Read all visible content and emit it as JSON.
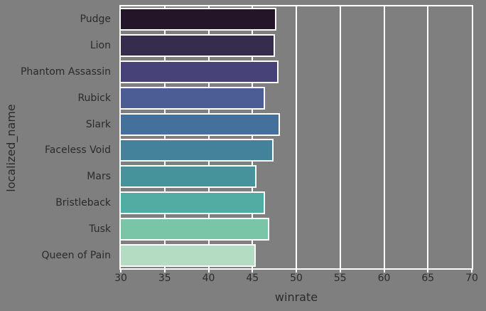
{
  "chart_data": {
    "type": "bar",
    "orientation": "horizontal",
    "title": "",
    "xlabel": "winrate",
    "ylabel": "localized_name",
    "categories": [
      "Pudge",
      "Lion",
      "Phantom Assassin",
      "Rubick",
      "Slark",
      "Faceless Void",
      "Mars",
      "Bristleback",
      "Tusk",
      "Queen of Pain"
    ],
    "values": [
      47.7,
      47.6,
      48.0,
      46.4,
      48.1,
      47.4,
      45.5,
      46.4,
      46.9,
      45.4
    ],
    "xlim": [
      30,
      70
    ],
    "xticks": [
      30,
      35,
      40,
      45,
      50,
      55,
      60,
      65,
      70
    ],
    "grid": "vertical",
    "legend_position": "none",
    "palette": "mako",
    "colors": {
      "background": "#7F7F7F",
      "gridline": "#FFFFFF",
      "bar_edge": "#FFFFFF",
      "text": "#2B2B2B",
      "bars": [
        "#251529",
        "#352D4B",
        "#474277",
        "#4C5C94",
        "#44719B",
        "#44819B",
        "#46939B",
        "#53ACA3",
        "#7AC5A7",
        "#B3DCC2"
      ]
    }
  }
}
